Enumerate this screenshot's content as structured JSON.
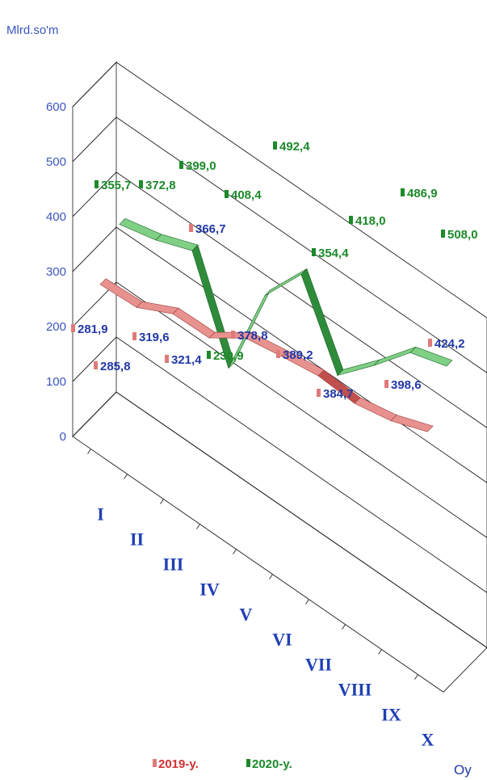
{
  "chart_data": {
    "type": "line",
    "style": "3d-ribbon",
    "ylabel": "Mlrd.so'm",
    "xlabel": "Oy",
    "ylim": [
      0,
      600
    ],
    "yticks": [
      "0",
      "100",
      "200",
      "300",
      "400",
      "500",
      "600"
    ],
    "categories": [
      "I",
      "II",
      "III",
      "IV",
      "V",
      "VI",
      "VII",
      "VIII",
      "IX",
      "X"
    ],
    "grid": true,
    "legend_position": "bottom",
    "series": [
      {
        "name": "2019-y.",
        "color": "#c0504d",
        "values": [
          281.9,
          285.8,
          319.6,
          321.4,
          366.7,
          378.8,
          389.2,
          384.7,
          398.6,
          424.2
        ],
        "labels": [
          "281,9",
          "285,8",
          "319,6",
          "321,4",
          "366,7",
          "378,8",
          "389,2",
          "384,7",
          "398,6",
          "424,2"
        ],
        "label_color": "#2238a8"
      },
      {
        "name": "2020-y.",
        "color": "#2e8b3a",
        "values": [
          355.7,
          372.8,
          399.0,
          230.9,
          408.4,
          492.4,
          354.4,
          418.0,
          486.9,
          508.0
        ],
        "labels": [
          "355,7",
          "372,8",
          "399,0",
          "230,9",
          "408,4",
          "492,4",
          "354,4",
          "418,0",
          "486,9",
          "508,0"
        ],
        "label_color": "#1c8a2a"
      }
    ]
  }
}
